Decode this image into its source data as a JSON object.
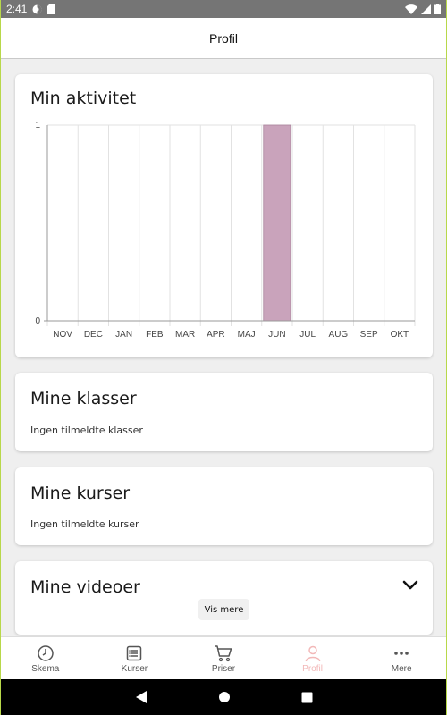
{
  "status_bar": {
    "time": "2:41"
  },
  "header": {
    "title": "Profil"
  },
  "activity_card": {
    "title": "Min aktivitet"
  },
  "chart_data": {
    "type": "bar",
    "categories": [
      "NOV",
      "DEC",
      "JAN",
      "FEB",
      "MAR",
      "APR",
      "MAJ",
      "JUN",
      "JUL",
      "AUG",
      "SEP",
      "OKT"
    ],
    "values": [
      0,
      0,
      0,
      0,
      0,
      0,
      0,
      1,
      0,
      0,
      0,
      0
    ],
    "ylim": [
      0,
      1
    ],
    "yticks": [
      "0",
      "1"
    ],
    "grid": true,
    "bar_color": "#c9a3bb"
  },
  "classes_card": {
    "title": "Mine klasser",
    "empty_text": "Ingen tilmeldte klasser"
  },
  "courses_card": {
    "title": "Mine kurser",
    "empty_text": "Ingen tilmeldte kurser"
  },
  "videos_card": {
    "title": "Mine videoer",
    "more_label": "Vis mere"
  },
  "bottom_nav": {
    "items": [
      {
        "label": "Skema",
        "icon": "clock-icon"
      },
      {
        "label": "Kurser",
        "icon": "list-icon"
      },
      {
        "label": "Priser",
        "icon": "cart-icon"
      },
      {
        "label": "Profil",
        "icon": "person-icon",
        "active": true
      },
      {
        "label": "Mere",
        "icon": "dots-icon"
      }
    ]
  },
  "colors": {
    "active_nav": "#f2b8b8",
    "accent_bar": "#c9a3bb"
  }
}
